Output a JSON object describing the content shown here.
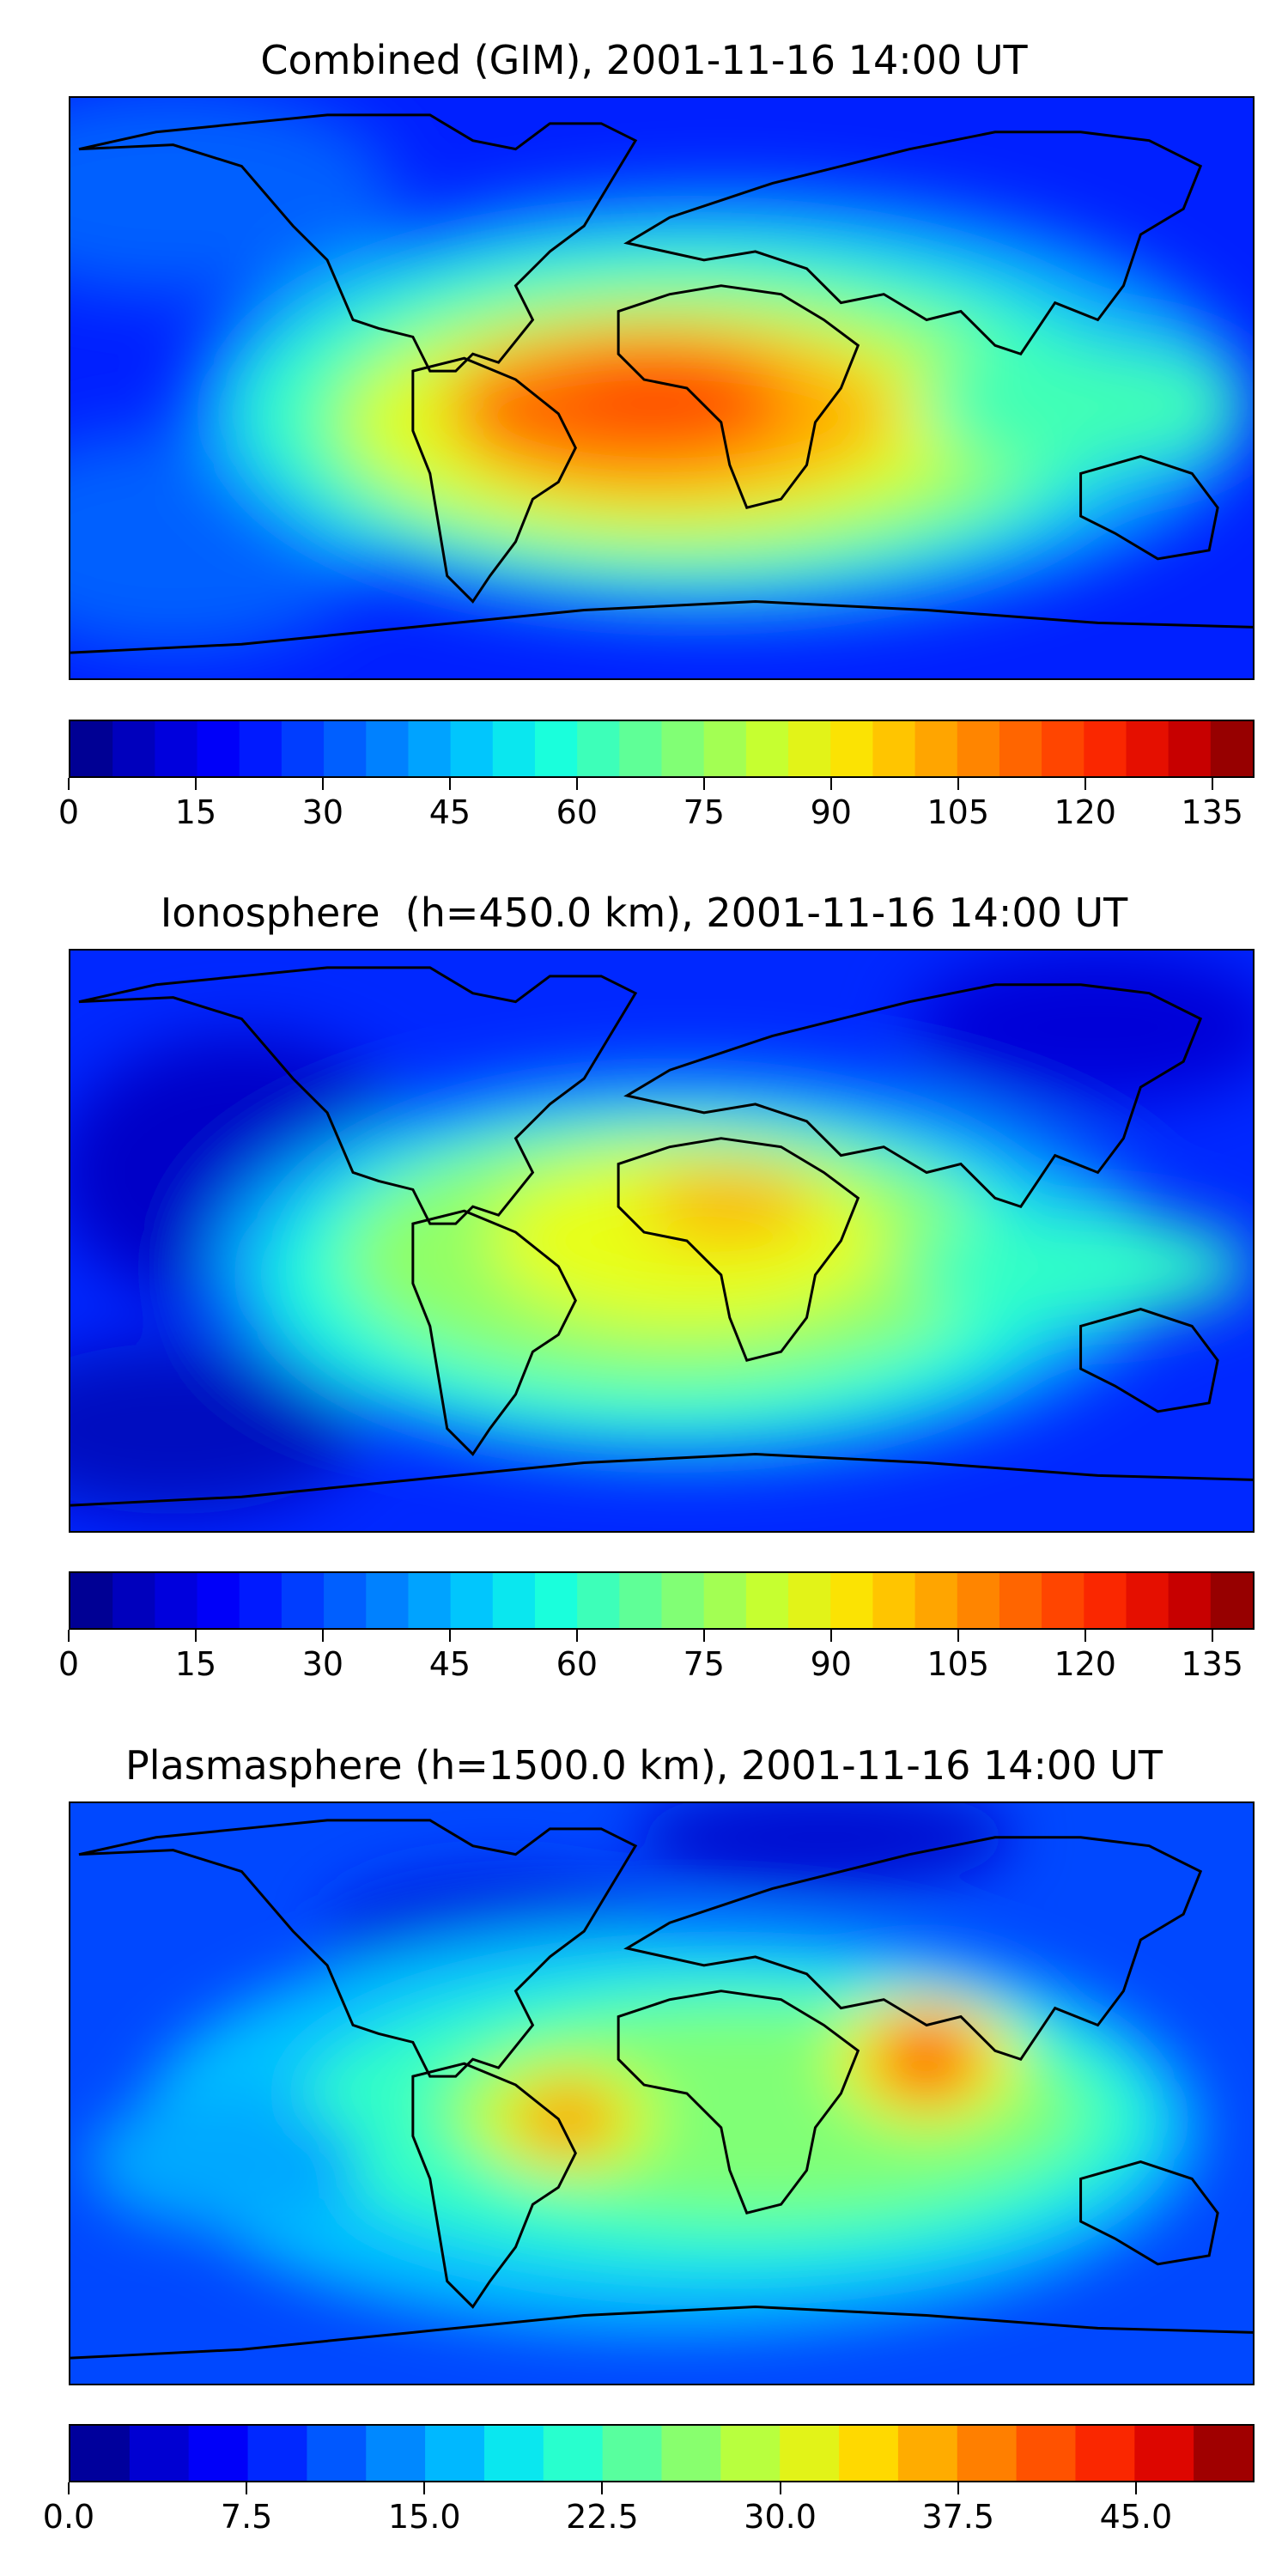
{
  "panels": [
    {
      "title": "Combined (GIM), 2001-11-16 14:00 UT",
      "colorbar": {
        "min": 0,
        "max": 140,
        "levels": 28,
        "tick_labels": [
          "0",
          "15",
          "30",
          "45",
          "60",
          "75",
          "90",
          "105",
          "120",
          "135"
        ]
      },
      "map": {
        "description": "TEC global map, peak over Africa/South Atlantic"
      }
    },
    {
      "title": "Ionosphere  (h=450.0 km), 2001-11-16 14:00 UT",
      "colorbar": {
        "min": 0,
        "max": 140,
        "levels": 28,
        "tick_labels": [
          "0",
          "15",
          "30",
          "45",
          "60",
          "75",
          "90",
          "105",
          "120",
          "135"
        ]
      },
      "map": {
        "description": "Ionospheric TEC, peak over central Africa"
      }
    },
    {
      "title": "Plasmasphere (h=1500.0 km), 2001-11-16 14:00 UT",
      "colorbar": {
        "min": 0,
        "max": 50,
        "levels": 20,
        "tick_labels": [
          "0.0",
          "7.5",
          "15.0",
          "22.5",
          "30.0",
          "37.5",
          "45.0"
        ]
      },
      "map": {
        "description": "Plasmaspheric TEC, peaks over Bay of Bengal and eastern Brazil"
      }
    }
  ],
  "colors": {
    "jet": [
      "#00007f",
      "#0000cc",
      "#0000ff",
      "#0040ff",
      "#0080ff",
      "#00c0ff",
      "#10ffe6",
      "#50ffa6",
      "#90ff66",
      "#d0ff26",
      "#ffe000",
      "#ffa400",
      "#ff6800",
      "#ff2c00",
      "#d80000",
      "#7f0000"
    ],
    "coast": "#000000"
  }
}
